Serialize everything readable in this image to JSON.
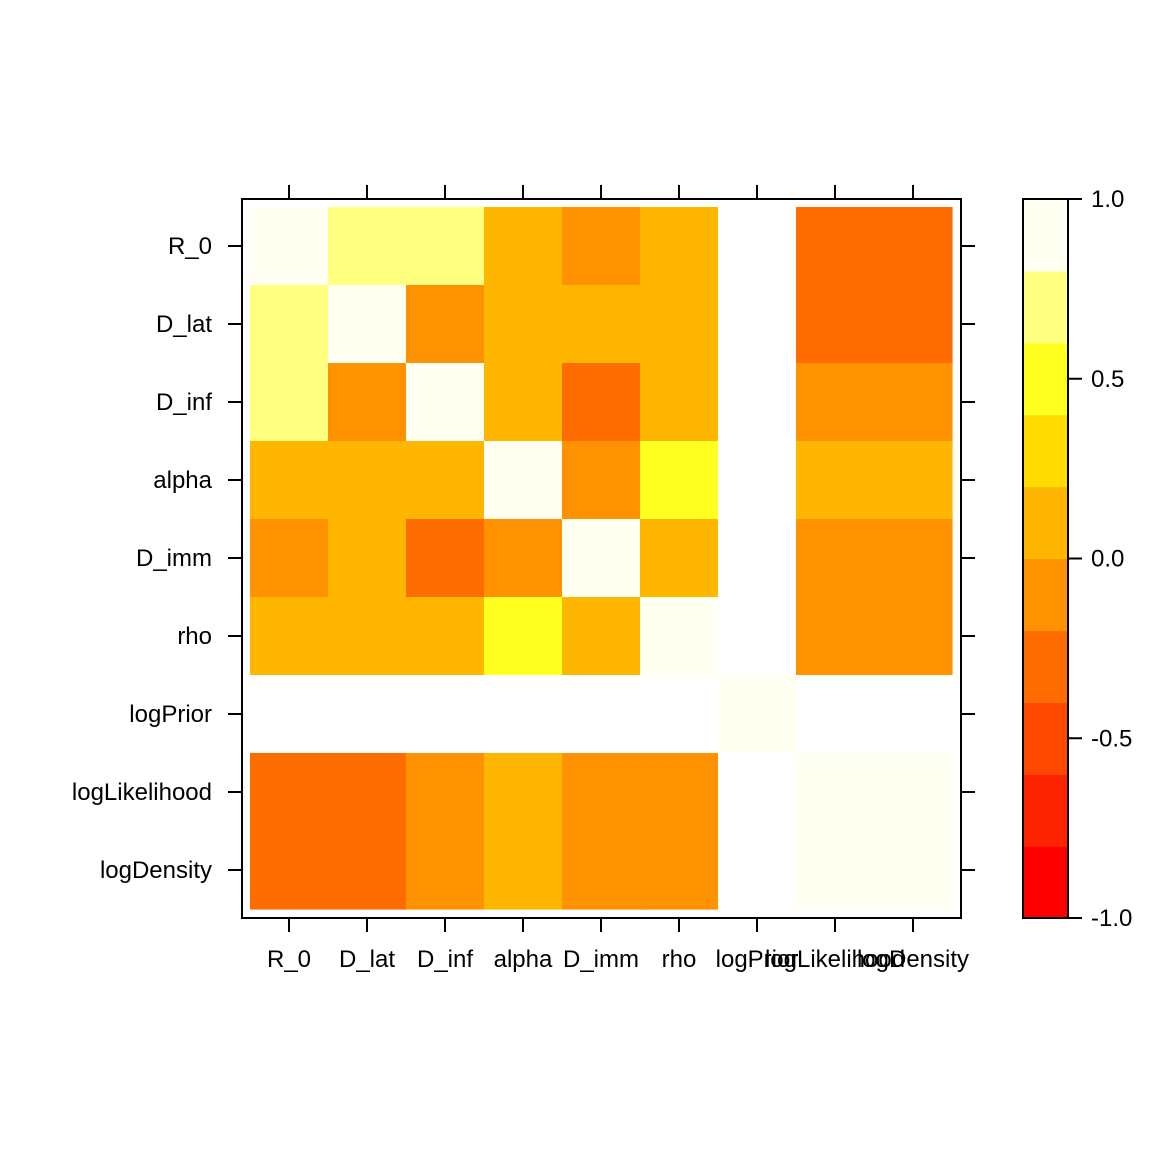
{
  "chart_data": {
    "type": "heatmap",
    "x_labels": [
      "R_0",
      "D_lat",
      "D_inf",
      "alpha",
      "D_imm",
      "rho",
      "logPrior",
      "logLikelihood",
      "logDensity"
    ],
    "y_labels": [
      "R_0",
      "D_lat",
      "D_inf",
      "alpha",
      "D_imm",
      "rho",
      "logPrior",
      "logLikelihood",
      "logDensity"
    ],
    "values": [
      [
        1.0,
        0.75,
        0.75,
        0.05,
        -0.1,
        0.05,
        null,
        -0.3,
        -0.3
      ],
      [
        0.75,
        1.0,
        -0.1,
        0.05,
        0.05,
        0.05,
        null,
        -0.3,
        -0.3
      ],
      [
        0.75,
        -0.1,
        1.0,
        0.05,
        -0.3,
        0.05,
        null,
        -0.1,
        -0.1
      ],
      [
        0.05,
        0.05,
        0.05,
        1.0,
        -0.1,
        0.45,
        null,
        0.05,
        0.05
      ],
      [
        -0.1,
        0.05,
        -0.3,
        -0.1,
        1.0,
        0.05,
        null,
        -0.1,
        -0.1
      ],
      [
        0.05,
        0.05,
        0.05,
        0.45,
        0.05,
        1.0,
        null,
        -0.1,
        -0.1
      ],
      [
        null,
        null,
        null,
        null,
        null,
        null,
        1.0,
        null,
        null
      ],
      [
        -0.3,
        -0.3,
        -0.1,
        0.05,
        -0.1,
        -0.1,
        null,
        1.0,
        1.0
      ],
      [
        -0.3,
        -0.3,
        -0.1,
        0.05,
        -0.1,
        -0.1,
        null,
        1.0,
        1.0
      ]
    ],
    "colorbar": {
      "ticks": [
        "1.0",
        "0.5",
        "0.0",
        "-0.5",
        "-1.0"
      ],
      "tick_values": [
        1.0,
        0.5,
        0.0,
        -0.5,
        -1.0
      ],
      "range": [
        -1.0,
        1.0
      ],
      "levels": 10,
      "colors": [
        "#FF0000",
        "#FF2400",
        "#FF4900",
        "#FF6D00",
        "#FF9200",
        "#FFB600",
        "#FFDB00",
        "#FFFF20",
        "#FFFF80",
        "#FFFFF2"
      ]
    },
    "missing_color": "#FFFFFF",
    "grid": false,
    "legend": "right"
  }
}
